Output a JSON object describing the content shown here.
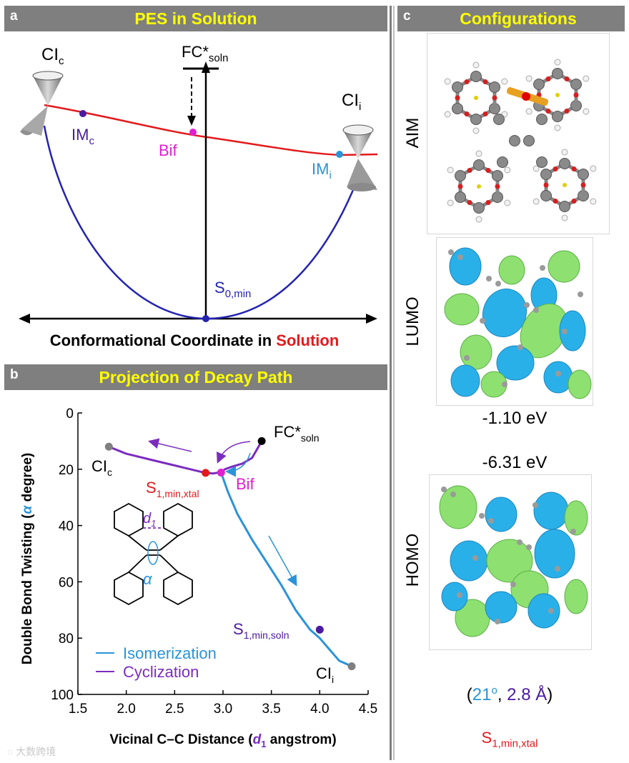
{
  "panel_a": {
    "tag": "a",
    "title": "PES in Solution",
    "axis_label_black": "Conformational  Coordinate  in ",
    "axis_label_red": "Solution",
    "labels": {
      "ci_c_main": "CI",
      "ci_c_sub": "c",
      "ci_i_main": "CI",
      "ci_i_sub": "i",
      "fc_main": "FC*",
      "fc_sub": "soln",
      "im_c_main": "IM",
      "im_c_sub": "c",
      "bif": "Bif",
      "im_i_main": "IM",
      "im_i_sub": "i",
      "s0_main": "S",
      "s0_sub": "0,min"
    }
  },
  "panel_b": {
    "tag": "b",
    "title": "Projection of Decay Path",
    "labels": {
      "ci_c_main": "CI",
      "ci_c_sub": "c",
      "s1_xtal_main": "S",
      "s1_xtal_sub": "1,min,xtal",
      "bif": "Bif",
      "fc_main": "FC*",
      "fc_sub": "soln",
      "s1_soln_main": "S",
      "s1_soln_sub": "1,min,soln",
      "ci_i_main": "CI",
      "ci_i_sub": "i",
      "d1_main": "d",
      "d1_sub": "1",
      "alpha": "α"
    },
    "legend": [
      "Isomerization",
      "Cyclization"
    ]
  },
  "panel_c": {
    "tag": "c",
    "title": "Configurations",
    "row_labels": [
      "AIM",
      "LUMO",
      "HOMO"
    ],
    "lumo_energy": "-1.10 eV",
    "homo_energy": "-6.31 eV",
    "paren_open": "(",
    "angle_value": "21",
    "degree": "o",
    "comma": ", ",
    "distance_value": "2.8 Å",
    "paren_close": ")",
    "state_main": "S",
    "state_sub": "1,min,xtal"
  },
  "watermark": "大数跨境",
  "colors": {
    "header_bg": "#7f7f7f",
    "header_text": "#ffff00",
    "red": "#e31a1c",
    "blue_path": "#2b93d8",
    "purple_path": "#7b2cbf",
    "navy": "#2424b0",
    "magenta": "#e020d0",
    "orbital_blue": "#2ab0e8",
    "orbital_green": "#8ee070"
  },
  "chart_data": {
    "type": "line",
    "title": "",
    "xlabel": "Vicinal C–C Distance (d1 angstrom)",
    "ylabel": "Double Bond Twisting (α degree)",
    "xlim": [
      1.5,
      4.5
    ],
    "ylim": [
      0,
      100
    ],
    "y_inverted": true,
    "x_ticks": [
      1.5,
      2.0,
      2.5,
      3.0,
      3.5,
      4.0,
      4.5
    ],
    "x_tick_labels": [
      "1.5",
      "2.0",
      "2.5",
      "3.0",
      "3.5",
      "4.0",
      "4.5"
    ],
    "y_ticks": [
      0,
      20,
      40,
      60,
      80,
      100
    ],
    "y_tick_labels": [
      "0",
      "20",
      "40",
      "60",
      "80",
      "100"
    ],
    "legend_position": "bottom-left",
    "series": [
      {
        "name": "Cyclization",
        "color": "#7b2cbf",
        "x": [
          3.4,
          3.35,
          3.3,
          3.2,
          3.1,
          3.02,
          2.98,
          2.95,
          2.9,
          2.82,
          2.6,
          2.3,
          2.0,
          1.82
        ],
        "y": [
          10,
          13,
          16,
          18,
          19,
          20,
          21,
          21.2,
          21.5,
          21.3,
          19.5,
          17,
          14.5,
          12
        ]
      },
      {
        "name": "Isomerization",
        "color": "#2b93d8",
        "x": [
          2.98,
          3.05,
          3.15,
          3.3,
          3.45,
          3.6,
          3.75,
          3.9,
          4.0,
          4.1,
          4.2,
          4.33
        ],
        "y": [
          21.2,
          28,
          36,
          45,
          53,
          61,
          70,
          77,
          80,
          84,
          88,
          90
        ]
      }
    ],
    "points": [
      {
        "label": "FC*soln",
        "x": 3.4,
        "y": 10,
        "color": "#000000"
      },
      {
        "label": "Bif",
        "x": 2.98,
        "y": 21.2,
        "color": "#e020d0"
      },
      {
        "label": "S1,min,xtal",
        "x": 2.82,
        "y": 21.3,
        "color": "#e31a1c"
      },
      {
        "label": "CIc",
        "x": 1.82,
        "y": 12,
        "color": "#808080"
      },
      {
        "label": "S1,min,soln",
        "x": 4.0,
        "y": 77,
        "color": "#4a1aa0"
      },
      {
        "label": "CIi",
        "x": 4.33,
        "y": 90,
        "color": "#808080"
      }
    ]
  }
}
